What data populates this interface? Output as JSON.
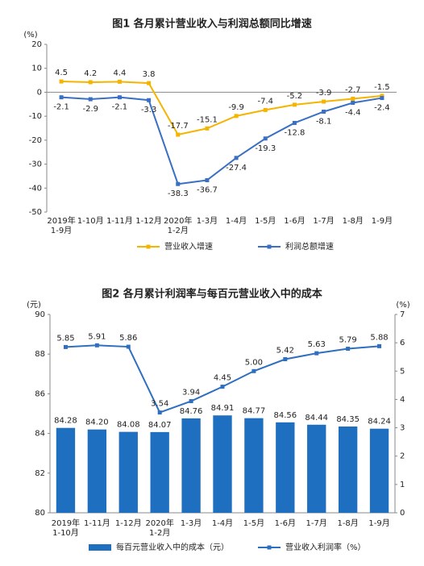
{
  "chart_data": [
    {
      "type": "line",
      "title": "图1 各月累计营业收入与利润总额同比增速",
      "y_unit": "(%)",
      "categories": [
        "2019年\n1-9月",
        "1-10月",
        "1-11月",
        "1-12月",
        "2020年\n1-2月",
        "1-3月",
        "1-4月",
        "1-5月",
        "1-6月",
        "1-7月",
        "1-8月",
        "1-9月"
      ],
      "ylim": [
        -50,
        20
      ],
      "yticks": [
        -50,
        -40,
        -30,
        -20,
        -10,
        0,
        10,
        20
      ],
      "series": [
        {
          "name": "营业收入增速",
          "color": "#f5b400",
          "values": [
            4.5,
            4.2,
            4.4,
            3.8,
            -17.7,
            -15.1,
            -9.9,
            -7.4,
            -5.2,
            -3.9,
            -2.7,
            -1.5
          ]
        },
        {
          "name": "利润总额增速",
          "color": "#3a6fc4",
          "values": [
            -2.1,
            -2.9,
            -2.1,
            -3.3,
            -38.3,
            -36.7,
            -27.4,
            -19.3,
            -12.8,
            -8.1,
            -4.4,
            -2.4
          ]
        }
      ]
    },
    {
      "type": "bar",
      "title": "图2 各月累计利润率与每百元营业收入中的成本",
      "y_unit": "(元)",
      "y2_unit": "(%)",
      "categories": [
        "2019年\n1-10月",
        "1-11月",
        "1-12月",
        "2020年\n1-2月",
        "1-3月",
        "1-4月",
        "1-5月",
        "1-6月",
        "1-7月",
        "1-8月",
        "1-9月"
      ],
      "ylim": [
        80,
        90
      ],
      "yticks": [
        80,
        82,
        84,
        86,
        88,
        90
      ],
      "y2lim": [
        0,
        7
      ],
      "y2ticks": [
        0,
        1,
        2,
        3,
        4,
        5,
        6,
        7
      ],
      "series": [
        {
          "name": "每百元营业收入中的成本（元）",
          "type": "bar",
          "color": "#1f6fc0",
          "values": [
            84.28,
            84.2,
            84.08,
            84.07,
            84.76,
            84.91,
            84.77,
            84.56,
            84.44,
            84.35,
            84.24
          ],
          "value_labels": [
            "84.28",
            "84.20",
            "84.08",
            "84.07",
            "84.76",
            "84.91",
            "84.77",
            "84.56",
            "84.44",
            "84.35",
            "84.24"
          ]
        },
        {
          "name": "营业收入利润率（%）",
          "type": "line",
          "axis": "y2",
          "color": "#2e6fc0",
          "values": [
            5.85,
            5.91,
            5.86,
            3.54,
            3.94,
            4.45,
            5.0,
            5.42,
            5.63,
            5.79,
            5.88
          ],
          "value_labels": [
            "5.85",
            "5.91",
            "5.86",
            "3.54",
            "3.94",
            "4.45",
            "5.00",
            "5.42",
            "5.63",
            "5.79",
            "5.88"
          ]
        }
      ]
    }
  ]
}
